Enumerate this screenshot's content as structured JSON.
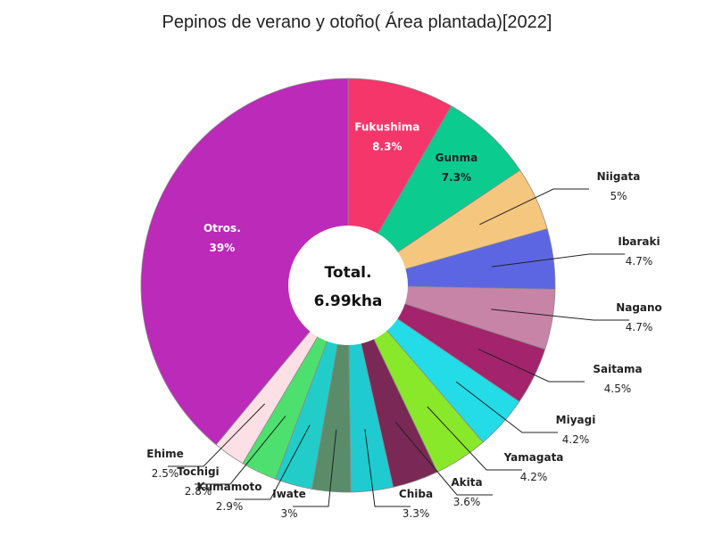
{
  "chart_data": {
    "type": "pie",
    "title": "Pepinos de verano y otoño( Área plantada)[2022]",
    "center_label": "Total.",
    "total_label": "6.99kha",
    "slices": [
      {
        "label": "Fukushima",
        "value": 8.3,
        "pct_label": "8.3%",
        "color": "#f5366a",
        "label_color": "#ffffff",
        "inside": true
      },
      {
        "label": "Gunma",
        "value": 7.3,
        "pct_label": "7.3%",
        "color": "#0ccb8f",
        "label_color": "#222222",
        "inside": true
      },
      {
        "label": "Niigata",
        "value": 5.0,
        "pct_label": "5%",
        "color": "#f5c77e",
        "label_color": "#222222",
        "inside": false
      },
      {
        "label": "Ibaraki",
        "value": 4.7,
        "pct_label": "4.7%",
        "color": "#5c66e2",
        "label_color": "#222222",
        "inside": false
      },
      {
        "label": "Nagano",
        "value": 4.7,
        "pct_label": "4.7%",
        "color": "#c884a6",
        "label_color": "#222222",
        "inside": false
      },
      {
        "label": "Saitama",
        "value": 4.5,
        "pct_label": "4.5%",
        "color": "#a3236d",
        "label_color": "#222222",
        "inside": false
      },
      {
        "label": "Miyagi",
        "value": 4.2,
        "pct_label": "4.2%",
        "color": "#23dce8",
        "label_color": "#222222",
        "inside": false
      },
      {
        "label": "Yamagata",
        "value": 4.2,
        "pct_label": "4.2%",
        "color": "#8ae82a",
        "label_color": "#222222",
        "inside": false
      },
      {
        "label": "Akita",
        "value": 3.6,
        "pct_label": "3.6%",
        "color": "#7a2855",
        "label_color": "#222222",
        "inside": false
      },
      {
        "label": "Chiba",
        "value": 3.3,
        "pct_label": "3.3%",
        "color": "#1fcbd0",
        "label_color": "#222222",
        "inside": false
      },
      {
        "label": "Iwate",
        "value": 3.0,
        "pct_label": "3%",
        "color": "#5a8c6a",
        "label_color": "#222222",
        "inside": false
      },
      {
        "label": "Kumamoto",
        "value": 2.9,
        "pct_label": "2.9%",
        "color": "#22cdc9",
        "label_color": "#222222",
        "inside": false
      },
      {
        "label": "Tochigi",
        "value": 2.8,
        "pct_label": "2.8%",
        "color": "#4ee06e",
        "label_color": "#222222",
        "inside": false
      },
      {
        "label": "Ehime",
        "value": 2.5,
        "pct_label": "2.5%",
        "color": "#fde0e6",
        "label_color": "#222222",
        "inside": false
      },
      {
        "label": "Otros.",
        "value": 39.0,
        "pct_label": "39%",
        "color": "#bb2ab8",
        "label_color": "#ffffff",
        "inside": true
      }
    ]
  }
}
